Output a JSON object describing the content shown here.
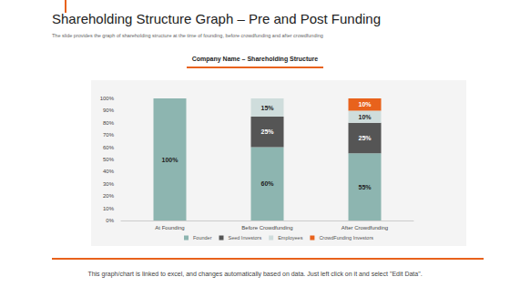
{
  "page": {
    "title": "Shareholding Structure Graph – Pre and Post Funding",
    "subtitle": "The slide provides the graph of shareholding structure at the time of founding, before crowdfunding and after crowdfunding",
    "footer": "This graph/chart is linked to excel, and changes automatically based on data. Just left click on it and select \"Edit Data\"."
  },
  "chart_data": {
    "type": "bar",
    "title": "Company Name – Shareholding Structure",
    "categories": [
      "At Founding",
      "Before Crowdfunding",
      "After Crowdfunding"
    ],
    "series": [
      {
        "name": "Founder",
        "color": "#8db5b0",
        "values": [
          100,
          60,
          55
        ],
        "value_labels": [
          "100%",
          "60%",
          "55%"
        ]
      },
      {
        "name": "Seed Investors",
        "color": "#555555",
        "values": [
          null,
          25,
          25
        ],
        "value_labels": [
          null,
          "25%",
          "25%"
        ]
      },
      {
        "name": "Employees",
        "color": "#cfdddc",
        "values": [
          null,
          15,
          10
        ],
        "value_labels": [
          null,
          "15%",
          "10%"
        ]
      },
      {
        "name": "CrowdFunding Investors",
        "color": "#e8621c",
        "values": [
          null,
          null,
          10
        ],
        "value_labels": [
          null,
          null,
          "10%"
        ]
      }
    ],
    "stacked": true,
    "data_labels": true,
    "grid": false,
    "legend": "bottom",
    "ylim": [
      0,
      100
    ],
    "yticks": [
      {
        "value": 0,
        "label": "0%"
      },
      {
        "value": 10,
        "label": "10%"
      },
      {
        "value": 20,
        "label": "20%"
      },
      {
        "value": 30,
        "label": "30%"
      },
      {
        "value": 40,
        "label": "40%"
      },
      {
        "value": 50,
        "label": "50%"
      },
      {
        "value": 60,
        "label": "60%"
      },
      {
        "value": 70,
        "label": "70%"
      },
      {
        "value": 80,
        "label": "80%"
      },
      {
        "value": 90,
        "label": "90%"
      },
      {
        "value": 100,
        "label": "100%"
      }
    ]
  }
}
